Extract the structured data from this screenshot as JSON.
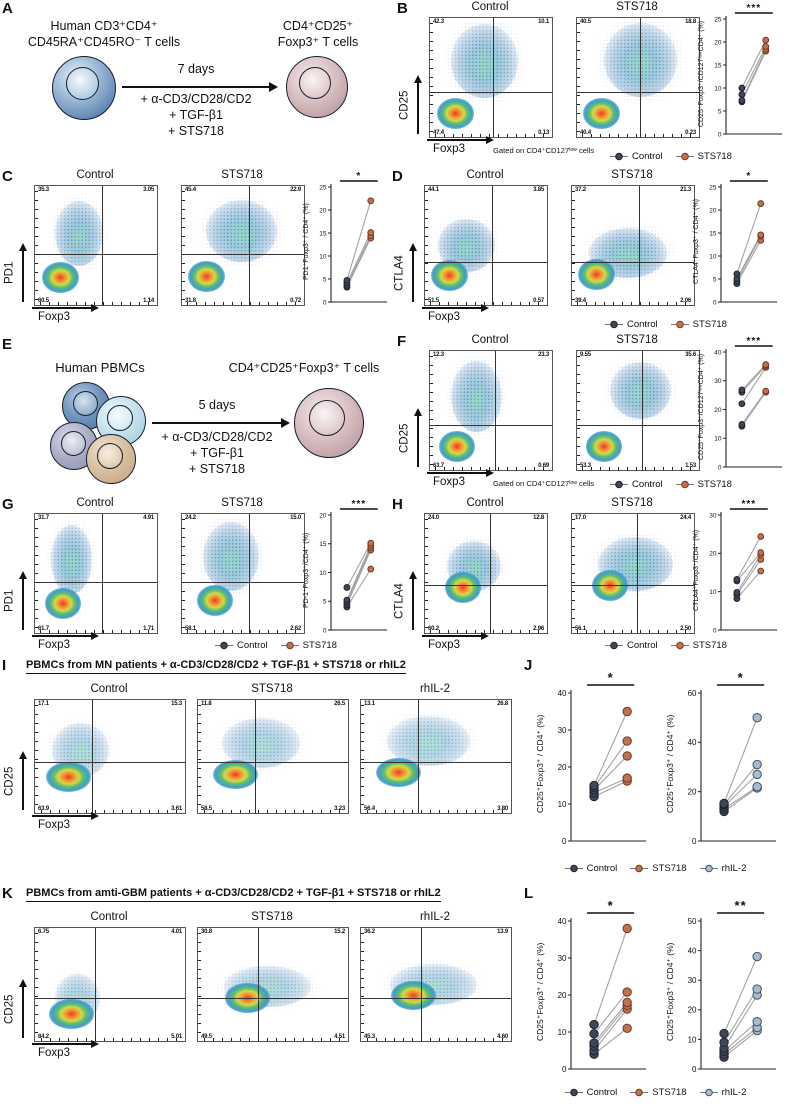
{
  "colors": {
    "control_fill": "#3e4657",
    "control_stroke": "#1f242e",
    "sts718_fill": "#c0714d",
    "sts718_stroke": "#6f3a24",
    "rhil2_fill": "#a7bcd0",
    "rhil2_stroke": "#45525e",
    "pair_line": "#a3a3a3",
    "axis": "#111111"
  },
  "panels": {
    "A": {
      "label": "A",
      "source_lines": [
        "Human CD3⁺CD4⁺",
        "CD45RA⁺CD45RO⁻ T cells"
      ],
      "product_lines": [
        "CD4⁺CD25⁺",
        "Foxp3⁺ T cells"
      ],
      "duration": "7 days",
      "conditions": [
        "+ α-CD3/CD28/CD2",
        "+ TGF-β1",
        "+ STS718"
      ]
    },
    "B": {
      "label": "B",
      "x_axis": "Foxp3",
      "y_axis": "CD25",
      "gate_note": "Gated on CD4⁺CD127ˡᵒʷ cells",
      "legend": [
        "Control",
        "STS718"
      ],
      "flow": {
        "v": 0.52,
        "h": 0.62,
        "plots": [
          {
            "title": "Control",
            "tl": "42.3",
            "tr": "10.1",
            "bl": "47.4",
            "br": "0.13",
            "cloud": [
              45,
              36,
              55,
              62
            ],
            "core": [
              21,
              80
            ]
          },
          {
            "title": "STS718",
            "tl": "40.5",
            "tr": "18.8",
            "bl": "40.4",
            "br": "0.23",
            "cloud": [
              52,
              35,
              60,
              62
            ],
            "core": [
              20,
              80
            ]
          }
        ]
      },
      "scatter": {
        "ylabel": "CD25⁺Foxp3⁺/CD127ˡᵒʷCD4⁺ (%)",
        "ymax": 25,
        "yticks": [
          0,
          5,
          10,
          15,
          20,
          25
        ],
        "sig": "***",
        "series": [
          {
            "name": "Control",
            "values": [
              7,
              7.3,
              8.6,
              10
            ]
          },
          {
            "name": "STS718",
            "values": [
              18,
              18.4,
              19,
              20.4
            ]
          }
        ]
      }
    },
    "C": {
      "label": "C",
      "x_axis": "Foxp3",
      "y_axis": "PD1",
      "flow": {
        "v": 0.55,
        "h": 0.57,
        "plots": [
          {
            "title": "Control",
            "tl": "35.3",
            "tr": "3.05",
            "bl": "60.5",
            "br": "1.14",
            "cloud": [
              36,
              40,
              40,
              55
            ],
            "core": [
              21,
              77
            ]
          },
          {
            "title": "STS718",
            "tl": "45.4",
            "tr": "22.9",
            "bl": "31.8",
            "br": "0.72",
            "cloud": [
              49,
              38,
              58,
              52
            ],
            "core": [
              20,
              76
            ]
          }
        ]
      },
      "scatter": {
        "ylabel": "PD1⁺Foxp3⁺ / CD4⁺ (%)",
        "ymax": 25,
        "yticks": [
          0,
          5,
          10,
          15,
          20,
          25
        ],
        "sig": "*",
        "series": [
          {
            "name": "Control",
            "values": [
              3.2,
              3.6,
              4.1,
              4.7
            ]
          },
          {
            "name": "STS718",
            "values": [
              13.9,
              14.4,
              15.1,
              22
            ]
          }
        ]
      }
    },
    "D": {
      "label": "D",
      "x_axis": "Foxp3",
      "y_axis": "CTLA4",
      "legend": [
        "Control",
        "STS718"
      ],
      "flow": {
        "v": 0.55,
        "h": 0.64,
        "plots": [
          {
            "title": "Control",
            "tl": "44.1",
            "tr": "3.85",
            "bl": "51.5",
            "br": "0.57",
            "cloud": [
              34,
              50,
              46,
              45
            ],
            "core": [
              20,
              75
            ]
          },
          {
            "title": "STS718",
            "tl": "37.2",
            "tr": "21.3",
            "bl": "39.4",
            "br": "2.06",
            "cloud": [
              46,
              56,
              64,
              42
            ],
            "core": [
              20,
              74
            ]
          }
        ]
      },
      "scatter": {
        "ylabel": "CTLA4⁺Foxp3⁺ / CD4⁺ (%)",
        "ymax": 25,
        "yticks": [
          0,
          5,
          10,
          15,
          20,
          25
        ],
        "sig": "*",
        "series": [
          {
            "name": "Control",
            "values": [
              4,
              4.5,
              5.1,
              6.1
            ]
          },
          {
            "name": "STS718",
            "values": [
              13.4,
              14.3,
              14.6,
              21.4
            ]
          }
        ]
      }
    },
    "E": {
      "label": "E",
      "source_lines": [
        "Human PBMCs"
      ],
      "product_lines": [
        "CD4⁺CD25⁺Foxp3⁺ T cells"
      ],
      "duration": "5 days",
      "conditions": [
        "+ α-CD3/CD28/CD2",
        "+ TGF-β1",
        "+ STS718"
      ]
    },
    "F": {
      "label": "F",
      "x_axis": "Foxp3",
      "y_axis": "CD25",
      "gate_note": "Gated on CD4⁺CD127ˡᵒʷ cells",
      "legend": [
        "Control",
        "STS718"
      ],
      "flow": {
        "v": 0.53,
        "h": 0.62,
        "plots": [
          {
            "title": "Control",
            "tl": "12.3",
            "tr": "23.3",
            "bl": "63.7",
            "br": "0.69",
            "cloud": [
              38,
              38,
              42,
              60
            ],
            "core": [
              22,
              80
            ]
          },
          {
            "title": "STS718",
            "tl": "9.55",
            "tr": "35.6",
            "bl": "53.3",
            "br": "1.53",
            "cloud": [
              52,
              33,
              50,
              48
            ],
            "core": [
              22,
              80
            ]
          }
        ]
      },
      "scatter": {
        "ylabel": "CD25⁺Foxp3⁺/CD127ˡᵒʷCD4⁺ (%)",
        "ymax": 40,
        "yticks": [
          0,
          10,
          20,
          30,
          40
        ],
        "sig": "***",
        "series": [
          {
            "name": "Control",
            "values": [
              14.2,
              14.8,
              22,
              26,
              26.8
            ]
          },
          {
            "name": "STS718",
            "values": [
              26,
              26.4,
              34.6,
              35.2,
              35.6
            ]
          }
        ]
      }
    },
    "G": {
      "label": "G",
      "x_axis": "Foxp3",
      "y_axis": "PD1",
      "legend": [
        "Control",
        "STS718"
      ],
      "flow": {
        "v": 0.55,
        "h": 0.57,
        "plots": [
          {
            "title": "Control",
            "tl": "31.7",
            "tr": "4.91",
            "bl": "61.7",
            "br": "1.71",
            "cloud": [
              30,
              38,
              34,
              58
            ],
            "core": [
              23,
              75
            ]
          },
          {
            "title": "STS718",
            "tl": "24.2",
            "tr": "15.0",
            "bl": "58.1",
            "br": "2.62",
            "cloud": [
              40,
              36,
              46,
              58
            ],
            "core": [
              27,
              73
            ]
          }
        ]
      },
      "scatter": {
        "ylabel": "PD-1⁺Foxp3⁺/CD4⁺ (%)",
        "ymax": 20,
        "yticks": [
          0,
          5,
          10,
          15,
          20
        ],
        "sig": "***",
        "series": [
          {
            "name": "Control",
            "values": [
              4,
              4.4,
              4.8,
              5.2,
              7.4
            ]
          },
          {
            "name": "STS718",
            "values": [
              10.6,
              13.9,
              14.3,
              14.7,
              15.1
            ]
          }
        ]
      }
    },
    "H": {
      "label": "H",
      "x_axis": "Foxp3",
      "y_axis": "CTLA4",
      "legend": [
        "Control",
        "STS718"
      ],
      "flow": {
        "v": 0.53,
        "h": 0.6,
        "plots": [
          {
            "title": "Control",
            "tl": "24.0",
            "tr": "12.8",
            "bl": "60.2",
            "br": "2.96",
            "cloud": [
              40,
              44,
              44,
              42
            ],
            "core": [
              31,
              62
            ]
          },
          {
            "title": "STS718",
            "tl": "17.0",
            "tr": "24.4",
            "bl": "56.1",
            "br": "2.50",
            "cloud": [
              52,
              42,
              62,
              46
            ],
            "core": [
              31,
              60
            ]
          }
        ]
      },
      "scatter": {
        "ylabel": "CTLA4⁺Foxp3⁺/CD4⁺ (%)",
        "ymax": 30,
        "yticks": [
          0,
          10,
          20,
          30
        ],
        "sig": "***",
        "series": [
          {
            "name": "Control",
            "values": [
              8.2,
              9.2,
              9.8,
              12.8,
              13.2
            ]
          },
          {
            "name": "STS718",
            "values": [
              15.4,
              18.4,
              19.6,
              20.2,
              24.4
            ]
          }
        ]
      }
    },
    "I": {
      "label": "I",
      "header": "PBMCs from MN patients  + α-CD3/CD28/CD2 + TGF-β1 + STS718 or rhIL2",
      "x_axis": "Foxp3",
      "y_axis": "CD25",
      "flow": {
        "v": 0.38,
        "h": 0.55,
        "plots": [
          {
            "title": "Control",
            "tl": "17.1",
            "tr": "15.3",
            "bl": "63.9",
            "br": "3.61",
            "cloud": [
              30,
              44,
              38,
              48
            ],
            "core": [
              22,
              68
            ]
          },
          {
            "title": "STS718",
            "tl": "11.8",
            "tr": "26.5",
            "bl": "58.5",
            "br": "3.23",
            "cloud": [
              42,
              38,
              52,
              44
            ],
            "core": [
              25,
              66
            ]
          },
          {
            "title": "rhIL-2",
            "tl": "13.1",
            "tr": "26.8",
            "bl": "56.4",
            "br": "3.80",
            "cloud": [
              45,
              36,
              55,
              44
            ],
            "core": [
              25,
              64
            ]
          }
        ]
      }
    },
    "J": {
      "label": "J",
      "legend": [
        "Control",
        "STS718",
        "rhIL-2"
      ],
      "scatters": [
        {
          "ylabel": "CD25⁺Foxp3⁺ / CD4⁺ (%)",
          "ymax": 40,
          "yticks": [
            0,
            10,
            20,
            30,
            40
          ],
          "sig": "*",
          "series": [
            {
              "name": "Control",
              "values": [
                12,
                13,
                13.8,
                14.4,
                15
              ]
            },
            {
              "name": "STS718",
              "values": [
                16.2,
                17,
                23,
                27,
                35
              ]
            }
          ]
        },
        {
          "ylabel": "CD25⁺Foxp3⁺ / CD4⁺ (%)",
          "ymax": 60,
          "yticks": [
            0,
            20,
            40,
            60
          ],
          "sig": "*",
          "series": [
            {
              "name": "Control",
              "values": [
                12,
                13,
                14,
                14.8,
                15.2
              ]
            },
            {
              "name": "rhIL-2",
              "values": [
                21.5,
                22,
                27,
                31,
                50
              ]
            }
          ]
        }
      ]
    },
    "K": {
      "label": "K",
      "header": "PBMCs from amti-GBM patients + α-CD3/CD28/CD2 + TGF-β1 + STS718 or rhIL2",
      "x_axis": "Foxp3",
      "y_axis": "CD25",
      "flow": {
        "v": 0.4,
        "h": 0.62,
        "plots": [
          {
            "title": "Control",
            "tl": "6.75",
            "tr": "4.01",
            "bl": "84.2",
            "br": "5.01",
            "cloud": [
              28,
              62,
              30,
              42
            ],
            "core": [
              24,
              76
            ]
          },
          {
            "title": "STS718",
            "tl": "30.8",
            "tr": "15.2",
            "bl": "49.5",
            "br": "4.51",
            "cloud": [
              46,
              52,
              58,
              36
            ],
            "core": [
              33,
              62
            ]
          },
          {
            "title": "rhIL-2",
            "tl": "36.2",
            "tr": "13.9",
            "bl": "45.3",
            "br": "4.60",
            "cloud": [
              48,
              50,
              58,
              36
            ],
            "core": [
              35,
              60
            ]
          }
        ]
      }
    },
    "L": {
      "label": "L",
      "legend": [
        "Control",
        "STS718",
        "rhIL-2"
      ],
      "scatters": [
        {
          "ylabel": "CD25⁺Foxp3⁺ / CD4⁺ (%)",
          "ymax": 40,
          "yticks": [
            0,
            10,
            20,
            30,
            40
          ],
          "sig": "*",
          "series": [
            {
              "name": "Control",
              "values": [
                4,
                5,
                6.2,
                7,
                9.5,
                12
              ]
            },
            {
              "name": "STS718",
              "values": [
                11,
                16.2,
                17.2,
                18,
                20.8,
                38
              ]
            }
          ]
        },
        {
          "ylabel": "CD25⁺Foxp3⁺ / CD4⁺ (%)",
          "ymax": 50,
          "yticks": [
            0,
            10,
            20,
            30,
            40,
            50
          ],
          "sig": "**",
          "series": [
            {
              "name": "Control",
              "values": [
                4,
                5,
                6,
                7,
                9,
                12
              ]
            },
            {
              "name": "rhIL-2",
              "values": [
                13,
                14,
                16,
                25,
                27,
                38
              ]
            }
          ]
        }
      ]
    }
  }
}
